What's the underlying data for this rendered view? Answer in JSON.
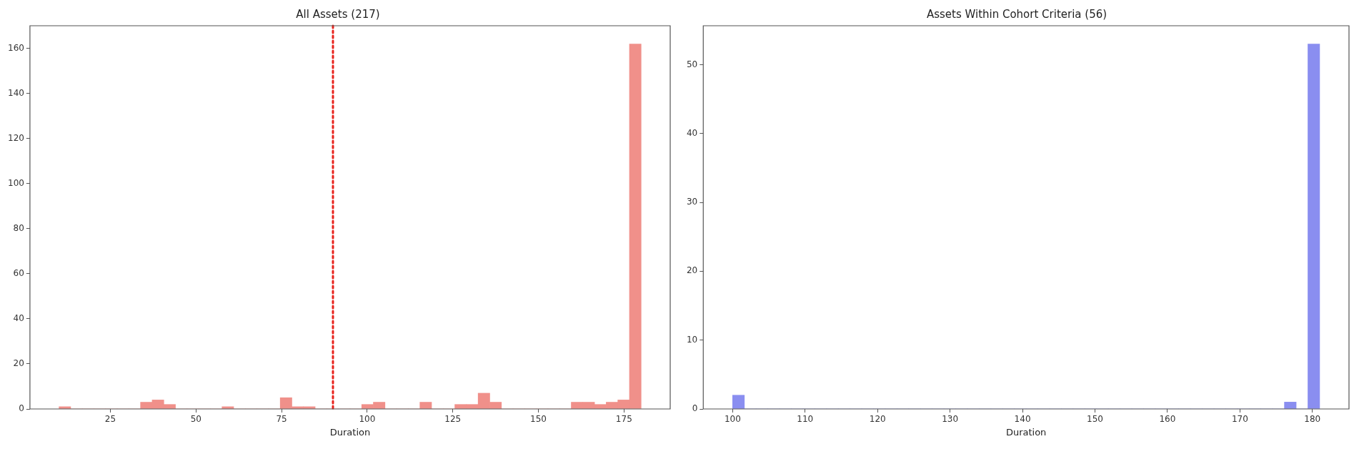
{
  "chart_data": [
    {
      "type": "histogram",
      "title": "All Assets (217)",
      "xlabel": "Duration",
      "color": "#f0908a",
      "bins": [
        10,
        13.4,
        16.8,
        20.2,
        23.6,
        27,
        30.4,
        33.8,
        37.2,
        40.6,
        44,
        47.4,
        50.8,
        54.2,
        57.6,
        61,
        64.4,
        67.8,
        71.2,
        74.6,
        78,
        81.4,
        84.8,
        88.2,
        91.6,
        95,
        98.4,
        101.8,
        105.2,
        108.6,
        112,
        115.4,
        118.8,
        122.2,
        125.6,
        129,
        132.4,
        135.8,
        139.2,
        142.6,
        146,
        149.4,
        152.8,
        156.2,
        159.6,
        163,
        166.4,
        169.8,
        173.2,
        176.6,
        180
      ],
      "values": [
        1,
        0,
        0,
        0,
        0,
        0,
        0,
        3,
        4,
        2,
        0,
        0,
        0,
        0,
        1,
        0,
        0,
        0,
        0,
        5,
        1,
        1,
        0,
        0,
        0,
        0,
        2,
        3,
        0,
        0,
        0,
        3,
        0,
        0,
        2,
        2,
        7,
        3,
        0,
        0,
        0,
        0,
        0,
        0,
        3,
        3,
        2,
        3,
        4,
        162
      ],
      "xlim": [
        1.5,
        188.5
      ],
      "xticks": [
        25,
        50,
        75,
        100,
        125,
        150,
        175
      ],
      "ylim": [
        0,
        170.1
      ],
      "yticks": [
        0,
        20,
        40,
        60,
        80,
        100,
        120,
        140,
        160
      ],
      "ref_lines": [
        {
          "axis": "x",
          "value": 90,
          "color": "#e8231d",
          "line_style": "dotted"
        }
      ]
    },
    {
      "type": "histogram",
      "title": "Assets Within Cohort Criteria (56)",
      "xlabel": "Duration",
      "color": "#8a8ef0",
      "bins": [
        100,
        101.62,
        103.24,
        104.86,
        106.48,
        108.1,
        109.72,
        111.34,
        112.96,
        114.58,
        116.2,
        117.82,
        119.44,
        121.06,
        122.68,
        124.3,
        125.92,
        127.54,
        129.16,
        130.78,
        132.4,
        134.02,
        135.64,
        137.26,
        138.88,
        140.5,
        142.12,
        143.74,
        145.36,
        146.98,
        148.6,
        150.22,
        151.84,
        153.46,
        155.08,
        156.7,
        158.32,
        159.94,
        161.56,
        163.18,
        164.8,
        166.42,
        168.04,
        169.66,
        171.28,
        172.9,
        174.52,
        176.14,
        177.76,
        179.38,
        181
      ],
      "values": [
        2,
        0,
        0,
        0,
        0,
        0,
        0,
        0,
        0,
        0,
        0,
        0,
        0,
        0,
        0,
        0,
        0,
        0,
        0,
        0,
        0,
        0,
        0,
        0,
        0,
        0,
        0,
        0,
        0,
        0,
        0,
        0,
        0,
        0,
        0,
        0,
        0,
        0,
        0,
        0,
        0,
        0,
        0,
        0,
        0,
        0,
        0,
        1,
        0,
        53
      ],
      "xlim": [
        95.95,
        185.05
      ],
      "xticks": [
        100,
        110,
        120,
        130,
        140,
        150,
        160,
        170,
        180
      ],
      "ylim": [
        0,
        55.65
      ],
      "yticks": [
        0,
        10,
        20,
        30,
        40,
        50
      ]
    }
  ]
}
